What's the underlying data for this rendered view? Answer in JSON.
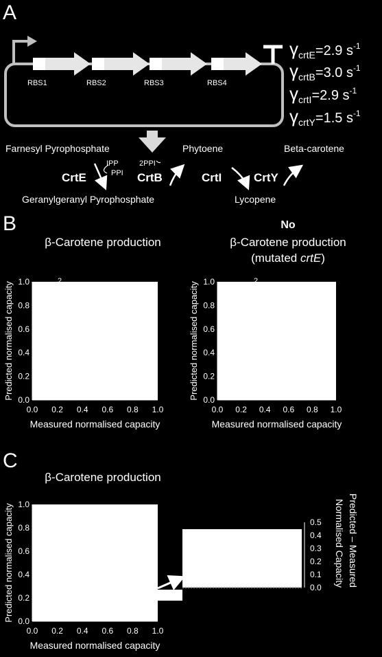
{
  "panel_a": {
    "label": "A",
    "rbs": [
      "RBS1",
      "RBS2",
      "RBS3",
      "RBS4"
    ],
    "rates": [
      {
        "gene": "crtE",
        "value": "2.9 s",
        "exp": "-1"
      },
      {
        "gene": "crtB",
        "value": "3.0 s",
        "exp": "-1"
      },
      {
        "gene": "crtI",
        "value": "2.9 s",
        "exp": "-1"
      },
      {
        "gene": "crtY",
        "value": "1.5 s",
        "exp": "-1"
      }
    ],
    "rate_prefix": "γ",
    "rate_eq": "=",
    "pathway": {
      "farnesyl": "Farnesyl Pyrophosphate",
      "ipp": "IPP",
      "ppi": "PPI",
      "two_ppi": "2PPI",
      "phytoene": "Phytoene",
      "beta_carotene": "Beta-carotene",
      "geranyl": "Geranylgeranyl Pyrophosphate",
      "lycopene": "Lycopene",
      "enzymes": [
        "CrtE",
        "CrtB",
        "CrtI",
        "CrtY"
      ]
    }
  },
  "panel_b": {
    "label": "B",
    "left_title": "β-Carotene production",
    "right_title_bold": "No",
    "right_title": "β-Carotene production",
    "right_subtitle_pre": "(mutated ",
    "right_subtitle_gene": "crtE",
    "right_subtitle_post": ")",
    "marker": "2"
  },
  "panel_c": {
    "label": "C",
    "title": "β-Carotene production",
    "inset_ylabel_1": "Predicted – Measured",
    "inset_ylabel_2": "Normalised Capacity"
  },
  "chart_data": [
    {
      "type": "scatter",
      "title": "β-Carotene production",
      "xlabel": "Measured normalised capacity",
      "ylabel": "Predicted normalised capacity",
      "xlim": [
        0,
        1
      ],
      "ylim": [
        0,
        1
      ],
      "xticks": [
        "0.0",
        "0.2",
        "0.4",
        "0.6",
        "0.8",
        "1.0"
      ],
      "yticks": [
        "0.0",
        "0.2",
        "0.4",
        "0.6",
        "0.8",
        "1.0"
      ]
    },
    {
      "type": "scatter",
      "title": "No β-Carotene production (mutated crtE)",
      "xlabel": "Measured normalised capacity",
      "ylabel": "Predicted normalised capacity",
      "xlim": [
        0,
        1
      ],
      "ylim": [
        0,
        1
      ],
      "xticks": [
        "0.0",
        "0.2",
        "0.4",
        "0.6",
        "0.8",
        "1.0"
      ],
      "yticks": [
        "0.0",
        "0.2",
        "0.4",
        "0.6",
        "0.8",
        "1.0"
      ]
    },
    {
      "type": "scatter",
      "title": "β-Carotene production",
      "xlabel": "Measured normalised capacity",
      "ylabel": "Predicted normalised capacity",
      "xlim": [
        0,
        1
      ],
      "ylim": [
        0,
        1
      ],
      "xticks": [
        "0.0",
        "0.2",
        "0.4",
        "0.6",
        "0.8",
        "1.0"
      ],
      "yticks": [
        "0.0",
        "0.2",
        "0.4",
        "0.6",
        "0.8",
        "1.0"
      ]
    },
    {
      "type": "bar",
      "ylabel": "Predicted – Measured Normalised Capacity",
      "ylim": [
        0,
        0.5
      ],
      "yticks": [
        "0.0",
        "0.1",
        "0.2",
        "0.3",
        "0.4",
        "0.5"
      ]
    }
  ]
}
